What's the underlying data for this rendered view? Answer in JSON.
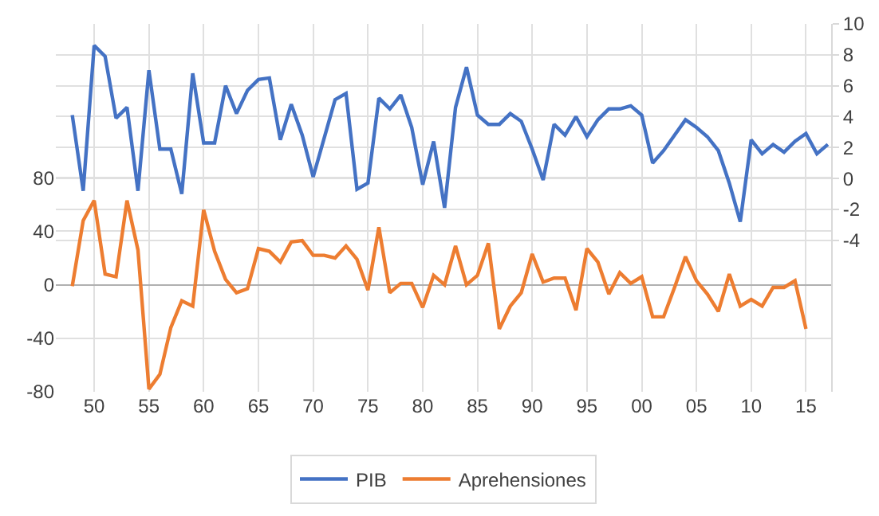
{
  "chart_data": {
    "type": "line",
    "x": [
      1948,
      1949,
      1950,
      1951,
      1952,
      1953,
      1954,
      1955,
      1956,
      1957,
      1958,
      1959,
      1960,
      1961,
      1962,
      1963,
      1964,
      1965,
      1966,
      1967,
      1968,
      1969,
      1970,
      1971,
      1972,
      1973,
      1974,
      1975,
      1976,
      1977,
      1978,
      1979,
      1980,
      1981,
      1982,
      1983,
      1984,
      1985,
      1986,
      1987,
      1988,
      1989,
      1990,
      1991,
      1992,
      1993,
      1994,
      1995,
      1996,
      1997,
      1998,
      1999,
      2000,
      2001,
      2002,
      2003,
      2004,
      2005,
      2006,
      2007,
      2008,
      2009,
      2010,
      2011,
      2012,
      2013,
      2014,
      2015,
      2016,
      2017
    ],
    "series": [
      {
        "name": "PIB",
        "color": "#4472c4",
        "axis": "y2",
        "values": [
          4.1,
          -0.8,
          8.6,
          7.9,
          3.9,
          4.6,
          -0.8,
          7.0,
          1.9,
          1.9,
          -1.0,
          6.8,
          2.3,
          2.3,
          6.0,
          4.2,
          5.7,
          6.4,
          6.5,
          2.5,
          4.8,
          2.8,
          0.1,
          2.6,
          5.1,
          5.5,
          -0.7,
          -0.3,
          5.2,
          4.5,
          5.4,
          3.3,
          -0.4,
          2.4,
          -1.9,
          4.6,
          7.2,
          4.1,
          3.5,
          3.5,
          4.2,
          3.7,
          1.9,
          -0.1,
          3.5,
          2.8,
          4.0,
          2.7,
          3.8,
          4.5,
          4.5,
          4.7,
          4.1,
          1.0,
          1.8,
          2.8,
          3.8,
          3.3,
          2.7,
          1.8,
          -0.3,
          -2.8,
          2.5,
          1.6,
          2.2,
          1.7,
          2.4,
          2.9,
          1.6,
          2.2
        ]
      },
      {
        "name": "Aprehensiones",
        "color": "#ed7d31",
        "values": [
          -1,
          48,
          63,
          8,
          6,
          63,
          26,
          -78,
          -67,
          -32,
          -12,
          -16,
          56,
          25,
          4,
          -6,
          -3,
          27,
          25,
          17,
          32,
          33,
          22,
          22,
          20,
          29,
          19,
          -4,
          43,
          -6,
          1,
          1,
          -17,
          7,
          0,
          29,
          0,
          7,
          31,
          -33,
          -16,
          -6,
          23,
          2,
          5,
          5,
          -19,
          27,
          17,
          -7,
          9,
          1,
          6,
          -24,
          -24,
          -2,
          21,
          3,
          -7,
          -20,
          8,
          -16,
          -11,
          -16,
          -2,
          -2,
          3,
          -33,
          null,
          null
        ]
      }
    ],
    "xlim": [
      1946.5,
      2017.3
    ],
    "xticks": [
      {
        "value": 1950,
        "label": "50"
      },
      {
        "value": 1955,
        "label": "55"
      },
      {
        "value": 1960,
        "label": "60"
      },
      {
        "value": 1965,
        "label": "65"
      },
      {
        "value": 1970,
        "label": "70"
      },
      {
        "value": 1975,
        "label": "75"
      },
      {
        "value": 1980,
        "label": "80"
      },
      {
        "value": 1985,
        "label": "85"
      },
      {
        "value": 1990,
        "label": "90"
      },
      {
        "value": 1995,
        "label": "95"
      },
      {
        "value": 2000,
        "label": "00"
      },
      {
        "value": 2005,
        "label": "05"
      },
      {
        "value": 2010,
        "label": "10"
      },
      {
        "value": 2015,
        "label": "15"
      }
    ],
    "ylim": [
      -80,
      195
    ],
    "yticks": [
      -80,
      -40,
      0,
      40,
      80
    ],
    "y2lim": [
      -13.8,
      10
    ],
    "y2ticks": [
      -4,
      -2,
      0,
      2,
      4,
      6,
      8,
      10
    ],
    "grid": true,
    "legend": "bottom",
    "marker": "none",
    "line_style": "solid"
  }
}
